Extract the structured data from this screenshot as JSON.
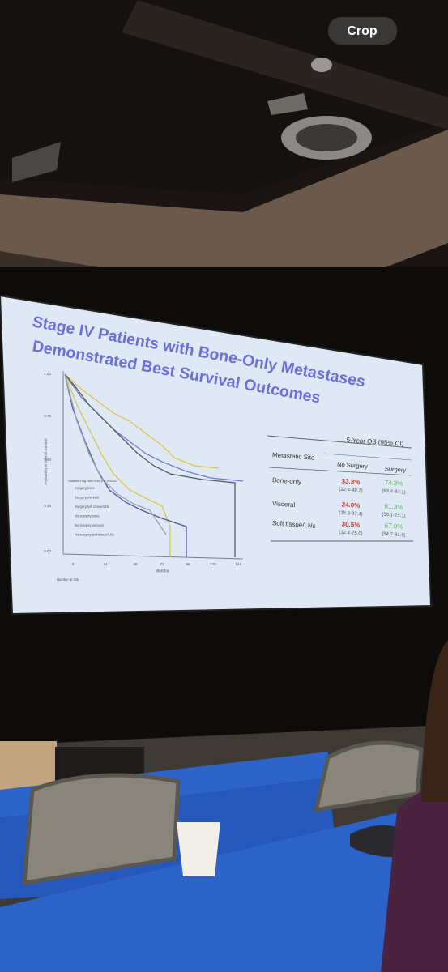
{
  "overlay": {
    "crop_button": "Crop"
  },
  "slide": {
    "title_lines": [
      "Stage IV Patients with Bone-Only Metastases",
      "Demonstrated Best Survival Outcomes"
    ],
    "chart": {
      "y_axis_label": "Probability of overall survival",
      "yticks": [
        "1.00",
        "0.75",
        "0.50",
        "0.25",
        "0.00"
      ],
      "xticks": [
        "0",
        "24",
        "48",
        "72",
        "96",
        "120",
        "144"
      ],
      "x_axis_label": "Months",
      "test_note": "Stratified log rank test: p < 0.0001",
      "legend": [
        "Surgery,bone",
        "Surgery,visceral",
        "Surgery,soft tissue/LNs",
        "No surgery,bone",
        "No surgery,visceral",
        "No surgery,soft tissue/LNs"
      ],
      "risk_table_title": "Number at risk"
    },
    "table": {
      "header": [
        "Metastatic Site",
        "5-Year OS (95% CI)"
      ],
      "subheader": [
        "No Surgery",
        "Surgery"
      ],
      "rows": [
        {
          "site": "Bone-only",
          "no_surgery": "33.3%",
          "no_surgery_ci": "(22.4-49.7)",
          "surgery": "74.3%",
          "surgery_ci": "(63.4-87.1)"
        },
        {
          "site": "Visceral",
          "no_surgery": "24.0%",
          "no_surgery_ci": "(15.3-37.4)",
          "surgery": "61.3%",
          "surgery_ci": "(50.1-75.1)"
        },
        {
          "site": "Soft tissue/LNs",
          "no_surgery": "30.5%",
          "no_surgery_ci": "(12.4-75.0)",
          "surgery": "67.0%",
          "surgery_ci": "(54.7-81.9)"
        }
      ]
    }
  }
}
